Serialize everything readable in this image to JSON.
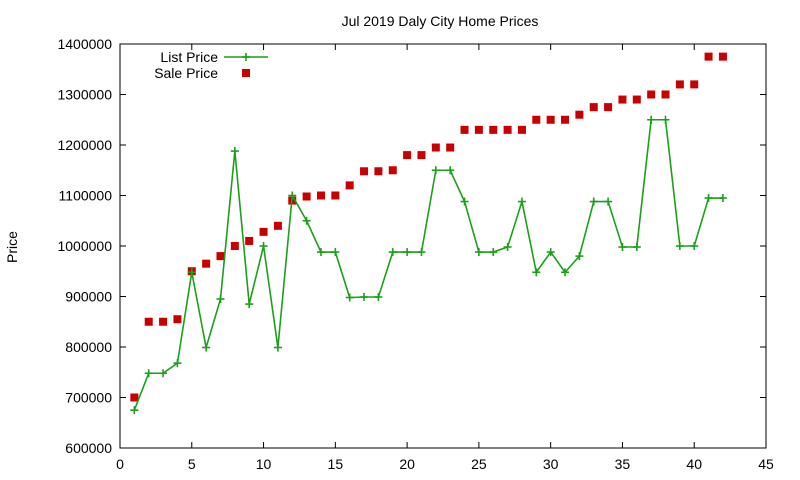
{
  "chart_data": {
    "type": "line",
    "title": "Jul 2019 Daly City Home Prices",
    "xlabel": "",
    "ylabel": "Price",
    "xlim": [
      0,
      45
    ],
    "ylim": [
      600000,
      1400000
    ],
    "x_ticks": [
      0,
      5,
      10,
      15,
      20,
      25,
      30,
      35,
      40,
      45
    ],
    "y_ticks": [
      600000,
      700000,
      800000,
      900000,
      1000000,
      1100000,
      1200000,
      1300000,
      1400000
    ],
    "grid": false,
    "legend_position": "top-left",
    "series": [
      {
        "name": "List Price",
        "style": "line+cross",
        "color": "#1aa01a",
        "x": [
          1,
          2,
          3,
          4,
          5,
          6,
          7,
          8,
          9,
          10,
          11,
          12,
          13,
          14,
          15,
          16,
          17,
          18,
          19,
          20,
          21,
          22,
          23,
          24,
          25,
          26,
          27,
          28,
          29,
          30,
          31,
          32,
          33,
          34,
          35,
          36,
          37,
          38,
          39,
          40,
          41,
          42
        ],
        "values": [
          675000,
          748000,
          748000,
          768000,
          948000,
          799000,
          895000,
          1188000,
          885000,
          1000000,
          799000,
          1100000,
          1050000,
          988000,
          988000,
          898000,
          899000,
          899000,
          988000,
          988000,
          988000,
          1150000,
          1150000,
          1088000,
          988000,
          988000,
          998000,
          1088000,
          948000,
          988000,
          948000,
          980000,
          1088000,
          1088000,
          998000,
          998000,
          1250000,
          1250000,
          1000000,
          1000000,
          1095000,
          1095000
        ]
      },
      {
        "name": "Sale Price",
        "style": "square",
        "color": "#c80000",
        "x": [
          1,
          2,
          3,
          4,
          5,
          6,
          7,
          8,
          9,
          10,
          11,
          12,
          13,
          14,
          15,
          16,
          17,
          18,
          19,
          20,
          21,
          22,
          23,
          24,
          25,
          26,
          27,
          28,
          29,
          30,
          31,
          32,
          33,
          34,
          35,
          36,
          37,
          38,
          39,
          40,
          41,
          42
        ],
        "values": [
          700000,
          850000,
          850000,
          855000,
          950000,
          965000,
          980000,
          1000000,
          1010000,
          1028000,
          1040000,
          1090000,
          1098000,
          1100000,
          1100000,
          1120000,
          1148000,
          1148000,
          1150000,
          1180000,
          1180000,
          1195000,
          1195000,
          1230000,
          1230000,
          1230000,
          1230000,
          1230000,
          1250000,
          1250000,
          1250000,
          1260000,
          1275000,
          1275000,
          1290000,
          1290000,
          1300000,
          1300000,
          1320000,
          1320000,
          1375000,
          1375000
        ]
      }
    ]
  }
}
